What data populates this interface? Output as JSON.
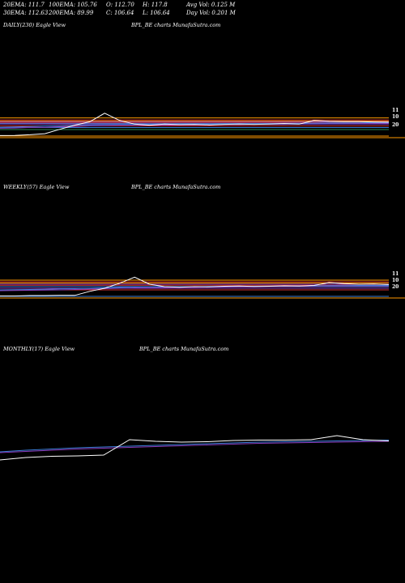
{
  "stats": {
    "row1": [
      "20EMA: 111.7",
      "100EMA: 105.76",
      "O: 112.70",
      "H: 117.8",
      "Avg Vol: 0.125 M"
    ],
    "row2": [
      "30EMA: 112.63",
      "200EMA: 89.99",
      "C: 106.64",
      "L: 106.64",
      "Day Vol: 0.201 M"
    ]
  },
  "panels": [
    {
      "id": "daily",
      "label": "DAILY(230) Eagle  View",
      "source": "BPL_BE charts MunafaSutra.com",
      "tick_labels": [
        "11",
        "10",
        "20"
      ]
    },
    {
      "id": "weekly",
      "label": "WEEKLY(57) Eagle  View",
      "source": "BPL_BE charts MunafaSutra.com",
      "tick_labels": [
        "11",
        "10",
        "20"
      ]
    },
    {
      "id": "monthly",
      "label": "MONTHLY(17) Eagle  View",
      "source": "BPL_BE charts MunafaSutra.com",
      "tick_labels": []
    }
  ],
  "colors": {
    "price": "#ffffff",
    "ema_blue": "#3a7bd5",
    "ema_red": "#d03030",
    "ema_orange": "#ff9900",
    "ema_purple": "#8a3ab9",
    "ema_green": "#2e8b57"
  },
  "chart_data": [
    {
      "type": "line",
      "name": "daily",
      "series": [
        {
          "values": [
            0.2,
            0.25,
            0.5,
            0.9,
            2.6,
            4.2,
            5.5,
            8.8,
            6.0,
            4.6,
            4.2,
            4.6,
            4.4,
            4.5,
            4.3,
            4.5,
            4.6,
            4.5,
            4.6,
            4.8,
            4.6,
            6.0,
            5.7,
            5.6,
            5.6,
            5.4,
            5.3
          ]
        },
        {
          "values": [
            3.4,
            3.5,
            3.7,
            3.9,
            4.0,
            4.2,
            4.3,
            4.4,
            4.5,
            4.5,
            4.5,
            4.5,
            4.6,
            4.6,
            4.6,
            4.7,
            4.7,
            4.8,
            4.8,
            4.9,
            4.9,
            5.0,
            5.1,
            5.1,
            5.1,
            5.2,
            5.2
          ]
        },
        {
          "values": [
            3.0,
            3.1,
            3.3,
            3.4,
            3.6,
            3.7,
            3.9,
            4.0,
            4.1,
            4.1,
            4.2,
            4.2,
            4.3,
            4.3,
            4.3,
            4.4,
            4.4,
            4.5,
            4.5,
            4.5,
            4.6,
            4.6,
            4.7,
            4.7,
            4.8,
            4.8,
            4.8
          ]
        }
      ],
      "bands": [
        7.0,
        6.2,
        5.8,
        5.5,
        5.2,
        4.9,
        4.6,
        3.9,
        3.3,
        2.5,
        0.0
      ]
    },
    {
      "type": "line",
      "name": "weekly",
      "series": [
        {
          "values": [
            0.2,
            0.2,
            0.4,
            0.4,
            0.5,
            0.5,
            2.5,
            4.0,
            6.5,
            9.5,
            6.0,
            4.8,
            4.5,
            4.8,
            4.7,
            5.0,
            5.1,
            4.9,
            5.0,
            5.2,
            5.1,
            5.4,
            6.8,
            6.3,
            6.0,
            6.1,
            5.8
          ]
        },
        {
          "values": [
            3.2,
            3.3,
            3.4,
            3.5,
            3.7,
            3.8,
            4.0,
            4.2,
            4.4,
            4.6,
            4.7,
            4.7,
            4.8,
            4.8,
            4.9,
            4.9,
            5.0,
            5.0,
            5.1,
            5.1,
            5.2,
            5.2,
            5.3,
            5.3,
            5.4,
            5.4,
            5.4
          ]
        },
        {
          "values": [
            2.8,
            2.9,
            3.0,
            3.1,
            3.2,
            3.4,
            3.6,
            3.8,
            4.0,
            4.2,
            4.3,
            4.4,
            4.5,
            4.5,
            4.6,
            4.6,
            4.7,
            4.7,
            4.8,
            4.8,
            4.9,
            4.9,
            5.0,
            5.0,
            5.1,
            5.1,
            5.1
          ]
        }
      ],
      "bands": [
        8.0,
        7.2,
        6.6,
        6.0,
        5.5,
        4.8,
        4.0,
        3.2,
        0.0
      ]
    },
    {
      "type": "line",
      "name": "monthly",
      "series": [
        {
          "values": [
            0.0,
            0.6,
            0.9,
            1.0,
            1.2,
            5.0,
            4.6,
            4.4,
            4.5,
            4.8,
            4.9,
            4.9,
            5.0,
            6.0,
            5.0,
            4.7
          ]
        },
        {
          "values": [
            2.0,
            2.4,
            2.7,
            3.0,
            3.2,
            3.4,
            3.6,
            3.8,
            4.0,
            4.2,
            4.4,
            4.5,
            4.6,
            4.7,
            4.8,
            4.9
          ]
        },
        {
          "values": [
            1.8,
            2.1,
            2.4,
            2.7,
            2.9,
            3.1,
            3.3,
            3.5,
            3.7,
            3.9,
            4.1,
            4.2,
            4.3,
            4.4,
            4.5,
            4.6
          ]
        }
      ],
      "bands": []
    }
  ]
}
